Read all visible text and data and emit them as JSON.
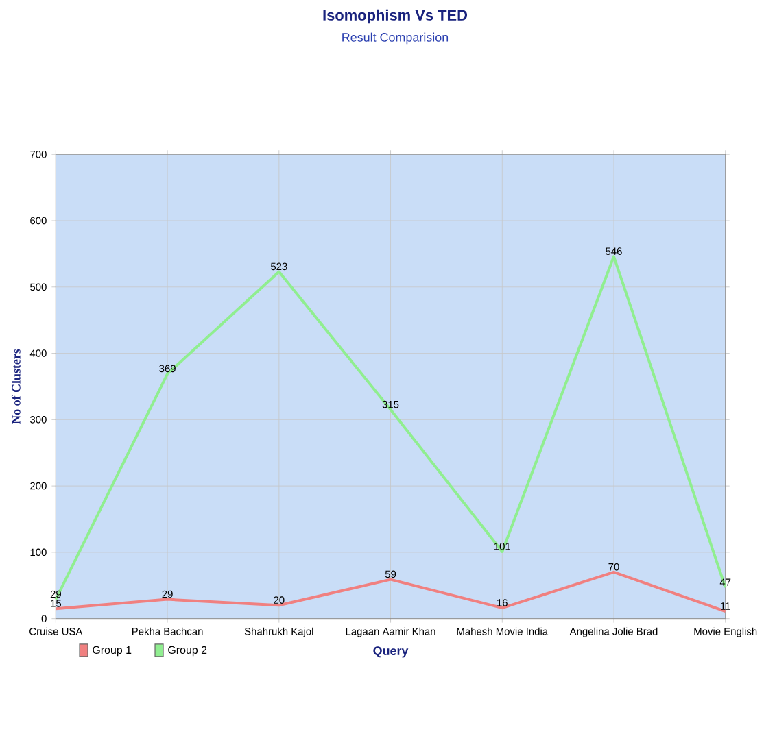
{
  "chart_data": {
    "type": "line",
    "title": "Isomophism Vs TED",
    "subtitle": "Result Comparision",
    "xlabel": "Query",
    "ylabel": "No of Clusters",
    "categories": [
      "Cruise USA",
      "Pekha Bachcan",
      "Shahrukh Kajol",
      "Lagaan Aamir Khan",
      "Mahesh Movie India",
      "Angelina Jolie Brad",
      "Movie English"
    ],
    "series": [
      {
        "name": "Group 1",
        "color": "#f08080",
        "values": [
          15,
          29,
          20,
          59,
          16,
          70,
          11
        ]
      },
      {
        "name": "Group 2",
        "color": "#90ee90",
        "values": [
          29,
          369,
          523,
          315,
          101,
          546,
          47
        ]
      }
    ],
    "ylim": [
      0,
      700
    ],
    "yticks": [
      0,
      100,
      200,
      300,
      400,
      500,
      600,
      700
    ],
    "grid": true,
    "legend": "bottom left",
    "data_labels": true,
    "marker": "none",
    "line_style": "solid"
  }
}
